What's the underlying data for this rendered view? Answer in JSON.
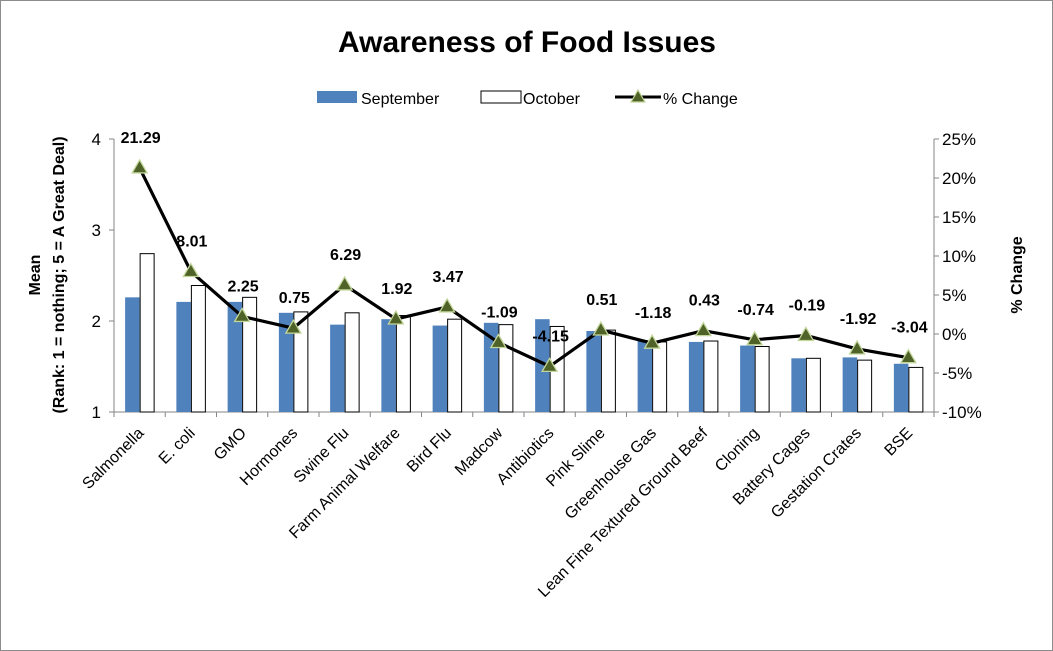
{
  "chart_data": {
    "type": "bar",
    "title": "Awareness of Food Issues",
    "categories": [
      "Salmonella",
      "E. coli",
      "GMO",
      "Hormones",
      "Swine Flu",
      "Farm Animal Welfare",
      "Bird Flu",
      "Madcow",
      "Antibiotics",
      "Pink Slime",
      "Greenhouse Gas",
      "Lean Fine Textured Ground Beef",
      "Cloning",
      "Battery Cages",
      "Gestation Crates",
      "BSE"
    ],
    "series": [
      {
        "name": "September",
        "kind": "bar",
        "axis": "left",
        "color": "#4f81bd",
        "values": [
          2.26,
          2.21,
          2.21,
          2.09,
          1.96,
          2.02,
          1.95,
          1.98,
          2.02,
          1.89,
          1.79,
          1.77,
          1.73,
          1.59,
          1.6,
          1.53
        ]
      },
      {
        "name": "October",
        "kind": "bar",
        "axis": "left",
        "color": "#ffffff",
        "values": [
          2.74,
          2.39,
          2.26,
          2.1,
          2.09,
          2.06,
          2.02,
          1.96,
          1.94,
          1.9,
          1.77,
          1.78,
          1.72,
          1.59,
          1.57,
          1.49
        ]
      },
      {
        "name": "% Change",
        "kind": "line",
        "axis": "right",
        "color": "#000000",
        "marker_color": "#4f6228",
        "values": [
          21.29,
          8.01,
          2.25,
          0.75,
          6.29,
          1.92,
          3.47,
          -1.09,
          -4.15,
          0.51,
          -1.18,
          0.43,
          -0.74,
          -0.19,
          -1.92,
          -3.04
        ],
        "labels": [
          "21.29",
          "8.01",
          "2.25",
          "0.75",
          "6.29",
          "1.92",
          "3.47",
          "-1.09",
          "-4.15",
          "0.51",
          "-1.18",
          "0.43",
          "-0.74",
          "-0.19",
          "-1.92",
          "-3.04"
        ]
      }
    ],
    "y_left": {
      "label_line1": "Mean",
      "label_line2": "(Rank: 1 = nothing; 5 = A Great Deal)",
      "ylim": [
        1,
        4
      ],
      "ticks": [
        "1",
        "2",
        "3",
        "4"
      ],
      "tick_values": [
        1,
        2,
        3,
        4
      ]
    },
    "y_right": {
      "label": "% Change",
      "ylim": [
        -10,
        25
      ],
      "ticks": [
        "-10%",
        "-5%",
        "0%",
        "5%",
        "10%",
        "15%",
        "20%",
        "25%"
      ],
      "tick_values": [
        -10,
        -5,
        0,
        5,
        10,
        15,
        20,
        25
      ]
    },
    "legend": {
      "placement": "top-center",
      "entries": [
        "September",
        "October",
        "% Change"
      ]
    },
    "grid": false
  }
}
